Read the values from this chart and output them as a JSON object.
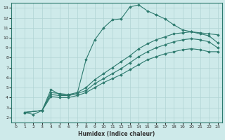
{
  "xlabel": "Humidex (Indice chaleur)",
  "background_color": "#ceeaea",
  "grid_color": "#b0d4d4",
  "line_color": "#2d7a6e",
  "xlim": [
    -0.5,
    23.5
  ],
  "ylim": [
    1.5,
    13.5
  ],
  "xticks": [
    0,
    1,
    2,
    3,
    4,
    5,
    6,
    7,
    8,
    9,
    10,
    11,
    12,
    13,
    14,
    15,
    16,
    17,
    18,
    19,
    20,
    21,
    22,
    23
  ],
  "yticks": [
    2,
    3,
    4,
    5,
    6,
    7,
    8,
    9,
    10,
    11,
    12,
    13
  ],
  "curve1_x": [
    1,
    2,
    3,
    4,
    5,
    6,
    7,
    8,
    9,
    10,
    11,
    12,
    13,
    14,
    15,
    16,
    17,
    18,
    19,
    20,
    21,
    22,
    23
  ],
  "curve1_y": [
    2.5,
    2.3,
    2.7,
    4.8,
    4.3,
    4.2,
    4.4,
    7.8,
    9.8,
    11.0,
    11.8,
    11.9,
    13.1,
    13.3,
    12.7,
    12.3,
    11.9,
    11.3,
    10.8,
    10.6,
    10.4,
    10.2,
    9.5
  ],
  "curve2_x": [
    1,
    3,
    4,
    5,
    6,
    7,
    8,
    9,
    10,
    11,
    12,
    13,
    14,
    15,
    16,
    17,
    18,
    19,
    20,
    21,
    22,
    23
  ],
  "curve2_y": [
    2.5,
    2.7,
    4.5,
    4.4,
    4.3,
    4.5,
    5.0,
    5.8,
    6.4,
    7.0,
    7.6,
    8.2,
    8.9,
    9.4,
    9.8,
    10.1,
    10.4,
    10.5,
    10.6,
    10.5,
    10.4,
    10.3
  ],
  "curve3_x": [
    1,
    3,
    4,
    5,
    6,
    7,
    8,
    9,
    10,
    11,
    12,
    13,
    14,
    15,
    16,
    17,
    18,
    19,
    20,
    21,
    22,
    23
  ],
  "curve3_y": [
    2.5,
    2.7,
    4.3,
    4.2,
    4.2,
    4.4,
    4.7,
    5.4,
    5.9,
    6.4,
    6.9,
    7.5,
    8.1,
    8.6,
    9.0,
    9.3,
    9.6,
    9.8,
    9.9,
    9.8,
    9.6,
    9.0
  ],
  "curve4_x": [
    1,
    3,
    4,
    5,
    6,
    7,
    8,
    9,
    10,
    11,
    12,
    13,
    14,
    15,
    16,
    17,
    18,
    19,
    20,
    21,
    22,
    23
  ],
  "curve4_y": [
    2.5,
    2.7,
    4.1,
    4.0,
    4.0,
    4.2,
    4.5,
    5.0,
    5.5,
    5.9,
    6.3,
    6.8,
    7.3,
    7.8,
    8.1,
    8.4,
    8.6,
    8.8,
    8.9,
    8.8,
    8.6,
    8.6
  ]
}
